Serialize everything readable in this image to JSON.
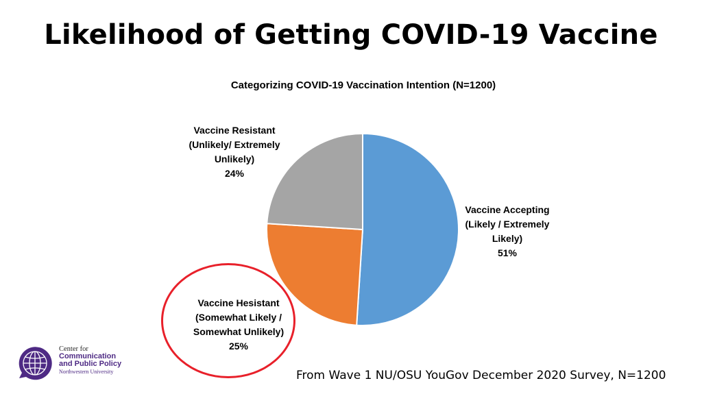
{
  "title": "Likelihood of Getting COVID-19 Vaccine",
  "footnote": "From Wave 1 NU/OSU YouGov December 2020 Survey, N=1200",
  "logo": {
    "line1": "Center for",
    "line2": "Communication",
    "line3": "and Public Policy",
    "line4": "Northwestern University",
    "color": "#4e2a84"
  },
  "highlight": {
    "target": "Vaccine Hesistant",
    "color": "#e8202a"
  },
  "chart_data": {
    "type": "pie",
    "title": "Categorizing COVID-19 Vaccination Intention (N=1200)",
    "slices": [
      {
        "name": "Vaccine Accepting",
        "detail": [
          "(Likely / Extremely",
          "Likely)"
        ],
        "name_lines": [
          "Vaccine Accepting",
          "(Likely / Extremely",
          "Likely)"
        ],
        "value": 51,
        "label": "51%",
        "color": "#5b9bd5"
      },
      {
        "name": "Vaccine Hesistant",
        "name_lines": [
          "Vaccine Hesistant",
          "(Somewhat Likely /",
          "Somewhat Unlikely)"
        ],
        "value": 25,
        "label": "25%",
        "color": "#ed7d31"
      },
      {
        "name": "Vaccine Resistant",
        "name_lines": [
          "Vaccine Resistant",
          "(Unlikely/ Extremely",
          "Unlikely)"
        ],
        "value": 24,
        "label": "24%",
        "color": "#a5a5a5"
      }
    ],
    "start": "12 o'clock",
    "direction": "clockwise",
    "legend": "none (data labels beside slices)"
  }
}
